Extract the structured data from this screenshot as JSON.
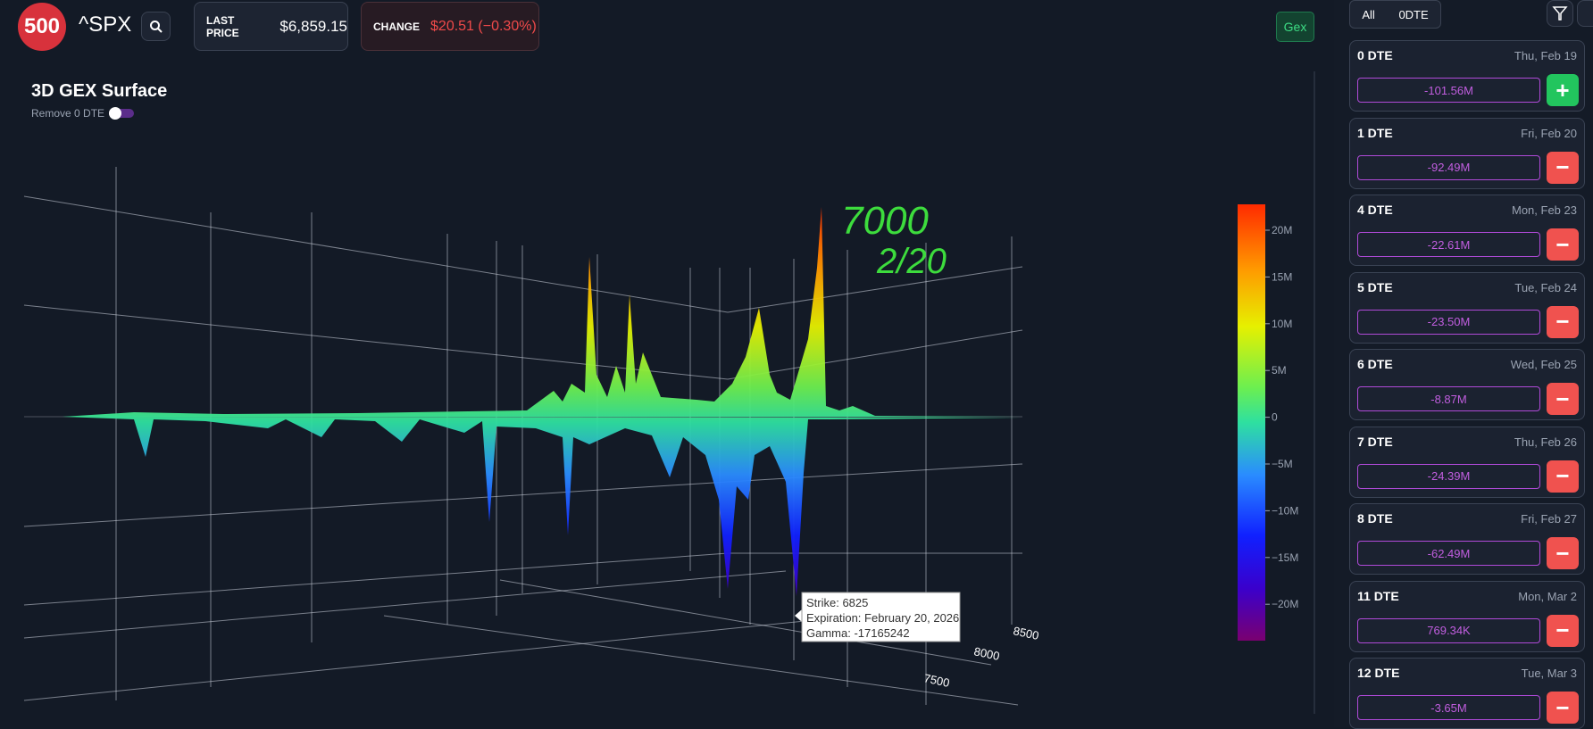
{
  "header": {
    "logo": "500",
    "symbol": "^SPX",
    "last_price_label": "LAST PRICE",
    "last_price": "$6,859.15",
    "change_label": "CHANGE",
    "change": "$20.51 (−0.30%)",
    "gex_button": "Gex"
  },
  "panel": {
    "title": "3D GEX Surface",
    "toggle_label": "Remove 0 DTE"
  },
  "colorbar": {
    "ticks": [
      "20M",
      "15M",
      "10M",
      "5M",
      "0",
      "−5M",
      "−10M",
      "−15M",
      "−20M"
    ]
  },
  "axis": {
    "strike_labels": [
      "8500",
      "8000",
      "7500"
    ]
  },
  "annotation": {
    "lines": [
      "7000",
      "2/20"
    ]
  },
  "tooltip": {
    "lines": [
      "Strike: 6825",
      "Expiration: February 20, 2026",
      "Gamma: -17165242"
    ]
  },
  "sidebar": {
    "tabs": [
      "All",
      "0DTE"
    ],
    "expirations": [
      {
        "dte": "0 DTE",
        "date": "Thu, Feb 19",
        "gex": "-101.56M",
        "action": "+"
      },
      {
        "dte": "1 DTE",
        "date": "Fri, Feb 20",
        "gex": "-92.49M",
        "action": "−"
      },
      {
        "dte": "4 DTE",
        "date": "Mon, Feb 23",
        "gex": "-22.61M",
        "action": "−"
      },
      {
        "dte": "5 DTE",
        "date": "Tue, Feb 24",
        "gex": "-23.50M",
        "action": "−"
      },
      {
        "dte": "6 DTE",
        "date": "Wed, Feb 25",
        "gex": "-8.87M",
        "action": "−"
      },
      {
        "dte": "7 DTE",
        "date": "Thu, Feb 26",
        "gex": "-24.39M",
        "action": "−"
      },
      {
        "dte": "8 DTE",
        "date": "Fri, Feb 27",
        "gex": "-62.49M",
        "action": "−"
      },
      {
        "dte": "11 DTE",
        "date": "Mon, Mar 2",
        "gex": "769.34K",
        "action": "−"
      },
      {
        "dte": "12 DTE",
        "date": "Tue, Mar 3",
        "gex": "-3.65M",
        "action": "−"
      }
    ]
  }
}
